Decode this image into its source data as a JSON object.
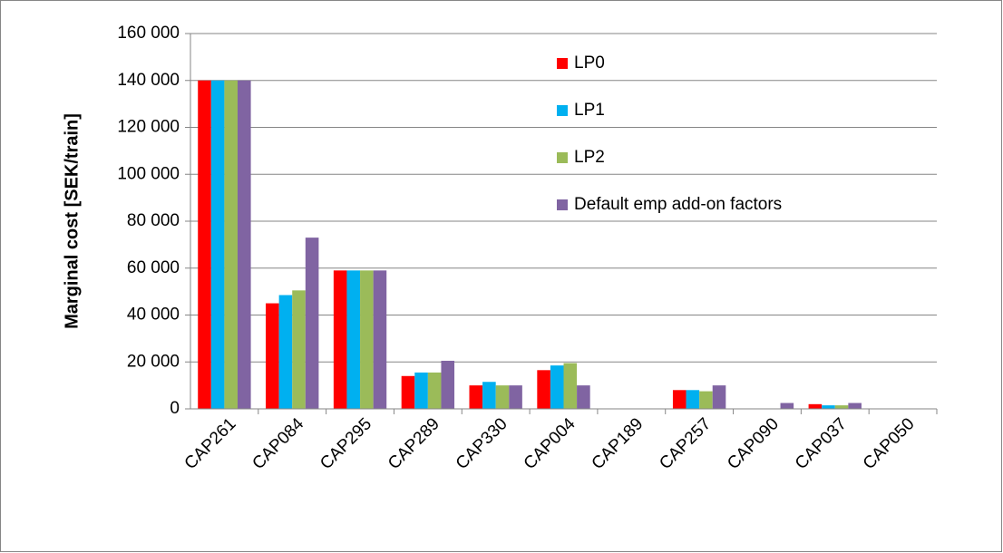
{
  "chart_data": {
    "type": "bar",
    "y_label": "Marginal cost  [SEK/train]",
    "categories": [
      "CAP261",
      "CAP084",
      "CAP295",
      "CAP289",
      "CAP330",
      "CAP004",
      "CAP189",
      "CAP257",
      "CAP090",
      "CAP037",
      "CAP050"
    ],
    "series": [
      {
        "name": "LP0",
        "color": "#ff0000",
        "values": [
          140000,
          45000,
          59000,
          14000,
          10000,
          16500,
          0,
          8000,
          0,
          2000,
          0
        ]
      },
      {
        "name": "LP1",
        "color": "#00b0f0",
        "values": [
          140000,
          48500,
          59000,
          15500,
          11500,
          18500,
          0,
          8000,
          0,
          1500,
          0
        ]
      },
      {
        "name": "LP2",
        "color": "#9bbb59",
        "values": [
          140000,
          50500,
          59000,
          15500,
          10000,
          19500,
          0,
          7500,
          0,
          1500,
          0
        ]
      },
      {
        "name": "Default emp add-on factors",
        "color": "#8064a2",
        "values": [
          140000,
          73000,
          59000,
          20500,
          10000,
          10000,
          0,
          10000,
          2500,
          2500,
          0
        ]
      }
    ],
    "ylim": [
      0,
      160000
    ],
    "yticks": [
      {
        "value": 0,
        "label": "0"
      },
      {
        "value": 20000,
        "label": "20 000"
      },
      {
        "value": 40000,
        "label": "40 000"
      },
      {
        "value": 60000,
        "label": "60 000"
      },
      {
        "value": 80000,
        "label": "80 000"
      },
      {
        "value": 100000,
        "label": "100 000"
      },
      {
        "value": 120000,
        "label": "120 000"
      },
      {
        "value": 140000,
        "label": "140 000"
      },
      {
        "value": 160000,
        "label": "160 000"
      }
    ],
    "grid": true
  }
}
